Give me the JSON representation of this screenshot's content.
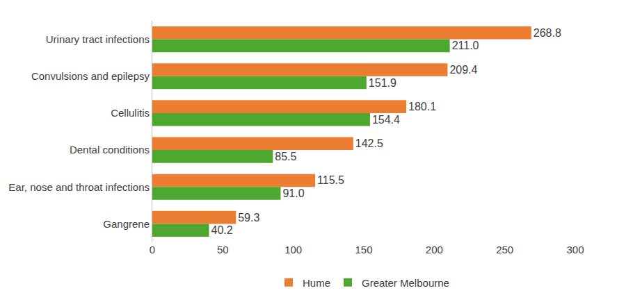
{
  "chart_data": {
    "type": "bar",
    "orientation": "horizontal",
    "categories": [
      "Urinary tract infections",
      "Convulsions and epilepsy",
      "Cellulitis",
      "Dental conditions",
      "Ear, nose and throat infections",
      "Gangrene"
    ],
    "series": [
      {
        "name": "Hume",
        "color": "#ed7d31",
        "values": [
          268.8,
          209.4,
          180.1,
          142.5,
          115.5,
          59.3
        ],
        "value_labels": [
          "268.8",
          "209.4",
          "180.1",
          "142.5",
          "115.5",
          "59.3"
        ]
      },
      {
        "name": "Greater Melbourne",
        "color": "#4ea72e",
        "values": [
          211.0,
          151.9,
          154.4,
          85.5,
          91.0,
          40.2
        ],
        "value_labels": [
          "211.0",
          "151.9",
          "154.4",
          "85.5",
          "91.0",
          "40.2"
        ]
      }
    ],
    "xlim": [
      0,
      300
    ],
    "xticks": [
      0,
      50,
      100,
      150,
      200,
      250,
      300
    ],
    "grid": false,
    "legend": "bottom",
    "data_labels": true
  }
}
